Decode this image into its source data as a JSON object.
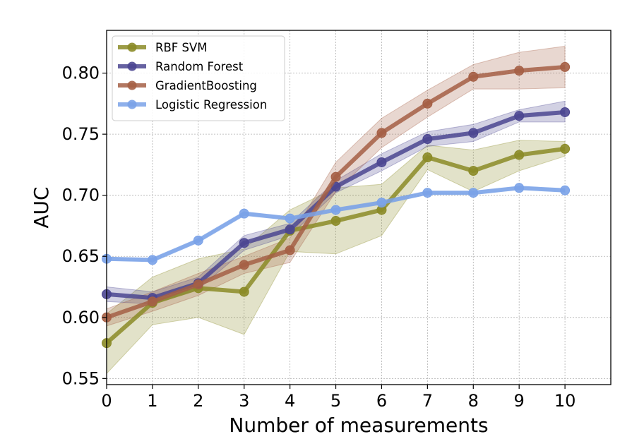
{
  "chart_data": {
    "type": "line",
    "xlabel": "Number of measurements",
    "ylabel": "AUC",
    "x": [
      0,
      1,
      2,
      3,
      4,
      5,
      6,
      7,
      8,
      9,
      10
    ],
    "x_ticks": [
      "0",
      "1",
      "2",
      "3",
      "4",
      "5",
      "6",
      "7",
      "8",
      "9",
      "10"
    ],
    "xlim": [
      0,
      11
    ],
    "y_ticks": [
      "0.55",
      "0.60",
      "0.65",
      "0.70",
      "0.75",
      "0.80"
    ],
    "ylim": [
      0.545,
      0.835
    ],
    "grid": true,
    "legend_position": "top-left",
    "series": [
      {
        "name": "RBF SVM",
        "color": "#8b8b27",
        "values": [
          0.579,
          0.612,
          0.624,
          0.621,
          0.671,
          0.679,
          0.688,
          0.731,
          0.72,
          0.733,
          0.738
        ],
        "band_low": [
          0.554,
          0.594,
          0.6,
          0.586,
          0.654,
          0.652,
          0.667,
          0.721,
          0.703,
          0.72,
          0.732
        ],
        "band_high": [
          0.603,
          0.633,
          0.648,
          0.656,
          0.688,
          0.706,
          0.709,
          0.741,
          0.737,
          0.745,
          0.744
        ]
      },
      {
        "name": "Random Forest",
        "color": "#4b4691",
        "values": [
          0.619,
          0.616,
          0.628,
          0.661,
          0.672,
          0.707,
          0.727,
          0.746,
          0.751,
          0.765,
          0.768
        ],
        "band_low": [
          0.613,
          0.611,
          0.623,
          0.655,
          0.667,
          0.702,
          0.72,
          0.74,
          0.744,
          0.76,
          0.76
        ],
        "band_high": [
          0.625,
          0.621,
          0.633,
          0.667,
          0.677,
          0.712,
          0.734,
          0.752,
          0.758,
          0.77,
          0.777
        ]
      },
      {
        "name": "GradientBoosting",
        "color": "#a55f45",
        "values": [
          0.6,
          0.613,
          0.627,
          0.643,
          0.655,
          0.715,
          0.751,
          0.775,
          0.797,
          0.802,
          0.805
        ],
        "band_low": [
          0.593,
          0.605,
          0.618,
          0.636,
          0.645,
          0.703,
          0.739,
          0.764,
          0.787,
          0.787,
          0.788
        ],
        "band_high": [
          0.607,
          0.621,
          0.636,
          0.65,
          0.665,
          0.727,
          0.763,
          0.786,
          0.807,
          0.817,
          0.822
        ]
      },
      {
        "name": "Logistic Regression",
        "color": "#7aa2e8",
        "values": [
          0.648,
          0.647,
          0.663,
          0.685,
          0.681,
          0.688,
          0.694,
          0.702,
          0.702,
          0.706,
          0.704
        ],
        "band_low": [
          0.647,
          0.646,
          0.662,
          0.684,
          0.68,
          0.687,
          0.693,
          0.701,
          0.701,
          0.705,
          0.703
        ],
        "band_high": [
          0.649,
          0.648,
          0.664,
          0.686,
          0.682,
          0.689,
          0.695,
          0.703,
          0.703,
          0.707,
          0.705
        ]
      }
    ]
  }
}
